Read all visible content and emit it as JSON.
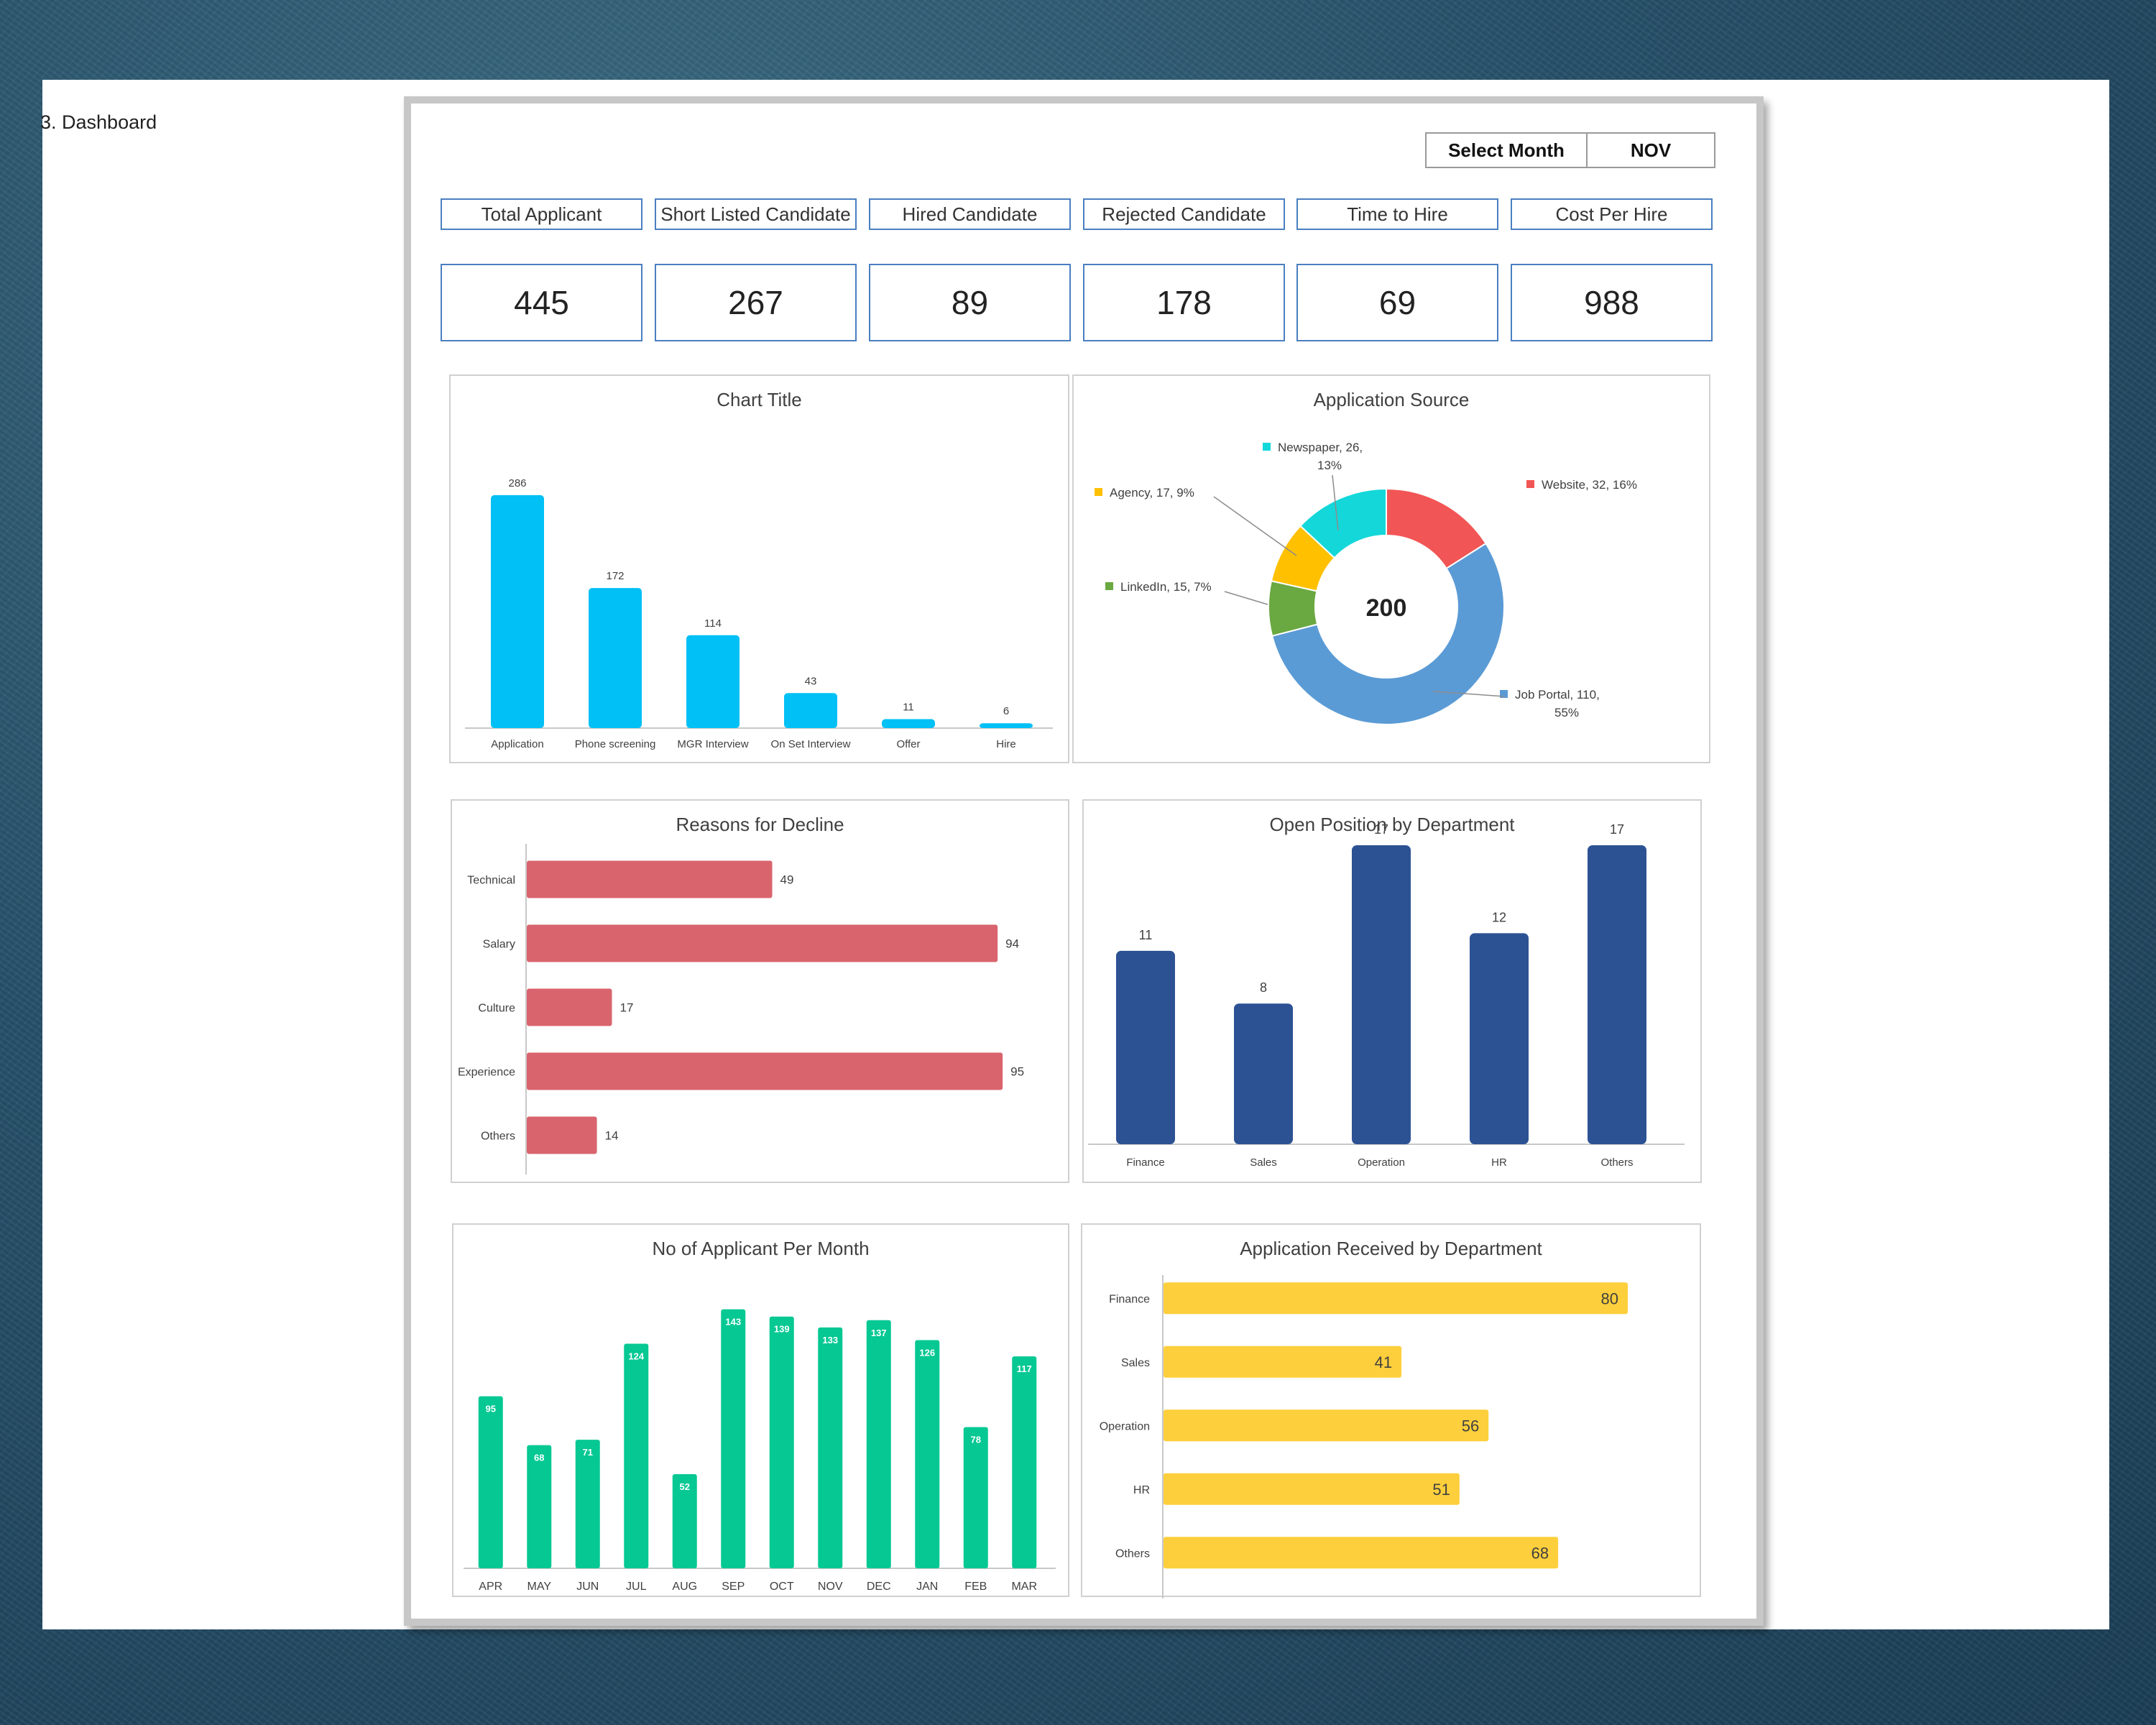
{
  "dashboard": {
    "title": "3. Dashboard",
    "month_selector": {
      "label": "Select Month",
      "value": "NOV"
    }
  },
  "kpis": [
    {
      "label": "Total Applicant",
      "value": "445"
    },
    {
      "label": "Short Listed Candidate",
      "value": "267"
    },
    {
      "label": "Hired Candidate",
      "value": "89"
    },
    {
      "label": "Rejected Candidate",
      "value": "178"
    },
    {
      "label": "Time to Hire",
      "value": "69"
    },
    {
      "label": "Cost Per Hire",
      "value": "988"
    }
  ],
  "colors": {
    "funnel": "#00c0f5",
    "decline": "#d9646e",
    "position": "#2c5294",
    "monthly": "#06c893",
    "received": "#fdcf3c",
    "newspaper": "#13d7d9",
    "website": "#f25555",
    "job_portal": "#5b9bd5",
    "linkedin": "#6aa842",
    "agency": "#ffc000"
  },
  "chart_data": [
    {
      "type": "bar",
      "title": "Chart Title",
      "categories": [
        "Application",
        "Phone screening",
        "MGR Interview",
        "On Set Interview",
        "Offer",
        "Hire"
      ],
      "values": [
        286,
        172,
        114,
        43,
        11,
        6
      ],
      "ylim": [
        0,
        300
      ]
    },
    {
      "type": "pie",
      "title": "Application Source",
      "center_label": "200",
      "slices": [
        {
          "label": "Website",
          "value": 32,
          "pct": "16%",
          "callout": "Website, 32, 16%"
        },
        {
          "label": "Job Portal",
          "value": 110,
          "pct": "55%",
          "callout": "Job Portal, 110, 55%"
        },
        {
          "label": "LinkedIn",
          "value": 15,
          "pct": "7%",
          "callout": "LinkedIn, 15, 7%"
        },
        {
          "label": "Agency",
          "value": 17,
          "pct": "9%",
          "callout": "Agency, 17, 9%"
        },
        {
          "label": "Newspaper",
          "value": 26,
          "pct": "13%",
          "callout": "Newspaper, 26, 13%"
        }
      ]
    },
    {
      "type": "bar",
      "orientation": "horizontal",
      "title": "Reasons for Decline",
      "categories": [
        "Technical",
        "Salary",
        "Culture",
        "Experience",
        "Others"
      ],
      "values": [
        49,
        94,
        17,
        95,
        14
      ],
      "xlim": [
        0,
        100
      ]
    },
    {
      "type": "bar",
      "title": "Open Position by Department",
      "categories": [
        "Finance",
        "Sales",
        "Operation",
        "HR",
        "Others"
      ],
      "values": [
        11,
        8,
        17,
        12,
        17
      ],
      "ylim": [
        0,
        17
      ]
    },
    {
      "type": "bar",
      "title": "No of Applicant Per Month",
      "categories": [
        "APR",
        "MAY",
        "JUN",
        "JUL",
        "AUG",
        "SEP",
        "OCT",
        "NOV",
        "DEC",
        "JAN",
        "FEB",
        "MAR"
      ],
      "values": [
        95,
        68,
        71,
        124,
        52,
        143,
        139,
        133,
        137,
        126,
        78,
        117
      ],
      "ylim": [
        0,
        150
      ]
    },
    {
      "type": "bar",
      "orientation": "horizontal",
      "title": "Application Received by Department",
      "categories": [
        "Finance",
        "Sales",
        "Operation",
        "HR",
        "Others"
      ],
      "values": [
        80,
        41,
        56,
        51,
        68
      ],
      "xlim": [
        0,
        80
      ]
    }
  ]
}
